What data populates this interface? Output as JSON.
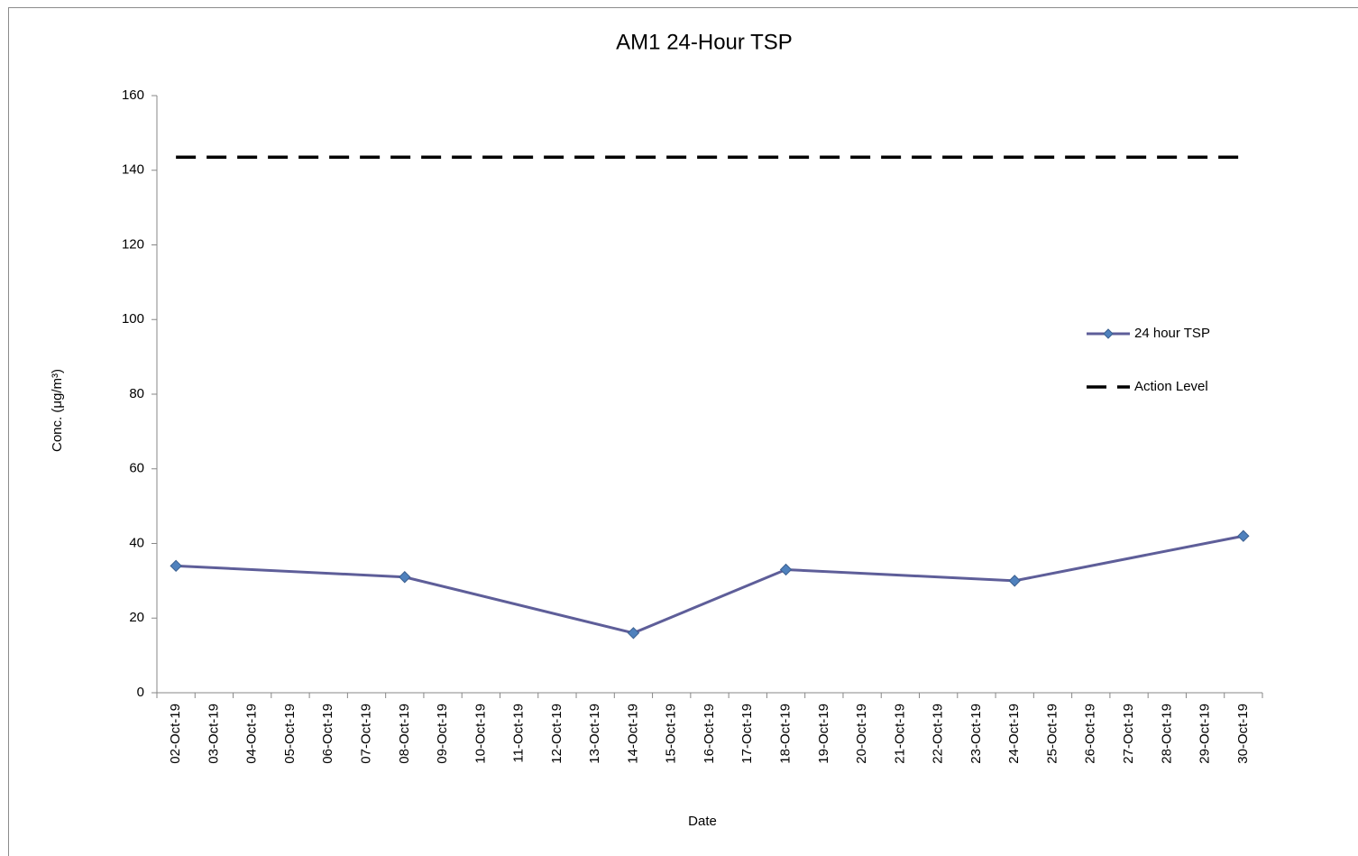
{
  "chart_data": {
    "type": "line",
    "title": "AM1 24-Hour TSP",
    "x_label": "Date",
    "y_label": "Conc. (μg/m³)",
    "categories": [
      "02-Oct-19",
      "03-Oct-19",
      "04-Oct-19",
      "05-Oct-19",
      "06-Oct-19",
      "07-Oct-19",
      "08-Oct-19",
      "09-Oct-19",
      "10-Oct-19",
      "11-Oct-19",
      "12-Oct-19",
      "13-Oct-19",
      "14-Oct-19",
      "15-Oct-19",
      "16-Oct-19",
      "17-Oct-19",
      "18-Oct-19",
      "19-Oct-19",
      "20-Oct-19",
      "21-Oct-19",
      "22-Oct-19",
      "23-Oct-19",
      "24-Oct-19",
      "25-Oct-19",
      "26-Oct-19",
      "27-Oct-19",
      "28-Oct-19",
      "29-Oct-19",
      "30-Oct-19"
    ],
    "series": [
      {
        "name": "24 hour TSP",
        "color": "#5e5e99",
        "marker_color": "#4f81bd",
        "marker": "diamond",
        "x": [
          "02-Oct-19",
          "08-Oct-19",
          "14-Oct-19",
          "18-Oct-19",
          "24-Oct-19",
          "30-Oct-19"
        ],
        "values": [
          34,
          31,
          16,
          33,
          30,
          42
        ]
      },
      {
        "name": "Action Level",
        "color": "#000000",
        "dashed": true,
        "x": [
          "02-Oct-19",
          "30-Oct-19"
        ],
        "values": [
          143.5,
          143.5
        ]
      }
    ],
    "ylim": [
      0,
      160
    ],
    "yticks": [
      0,
      20,
      40,
      60,
      80,
      100,
      120,
      140,
      160
    ],
    "grid": false,
    "legend": "right"
  }
}
